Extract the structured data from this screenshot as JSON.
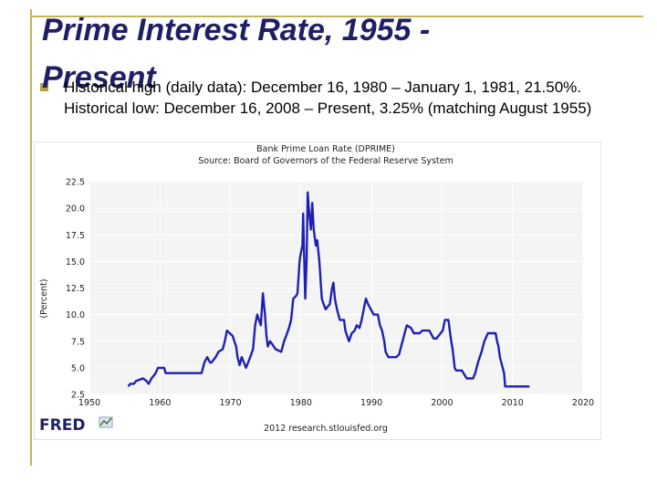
{
  "slide": {
    "title_line1": "Prime Interest Rate, 1955 -",
    "title_line2": "Present",
    "bullet": "Historical high (daily data): December 16, 1980 – January 1, 1981, 21.50%.  Historical low: December 16, 2008 – Present, 3.25% (matching August 1955)"
  },
  "colors": {
    "accent_rule": "#c8b35a",
    "title": "#1f1f66",
    "series_line": "#1f1fb4"
  },
  "chart_data": {
    "type": "line",
    "title": "Bank Prime Loan Rate (DPRIME)",
    "subtitle": "Source: Board of Governors of the Federal Reserve System",
    "ylabel": "(Percent)",
    "xlabel": "",
    "xlim": [
      1950,
      2020
    ],
    "ylim": [
      2.5,
      22.5
    ],
    "x_ticks": [
      "1950",
      "1960",
      "1970",
      "1980",
      "1990",
      "2000",
      "2010",
      "2020"
    ],
    "y_ticks": [
      "2.5",
      "5.0",
      "7.5",
      "10.0",
      "12.5",
      "15.0",
      "17.5",
      "20.0",
      "22.5"
    ],
    "grid": true,
    "logo": "FRED",
    "footer": "2012 research.stlouisfed.org",
    "series": [
      {
        "x": [
          1955.5,
          1955.8,
          1956.3,
          1956.6,
          1957.6,
          1958.1,
          1958.4,
          1958.8,
          1959.4,
          1959.7,
          1960.6,
          1960.8,
          1965.9,
          1966.3,
          1966.7,
          1967.1,
          1967.3,
          1967.9,
          1968.3,
          1968.9,
          1969.2,
          1969.5,
          1970.3,
          1970.8,
          1971.0,
          1971.3,
          1971.6,
          1971.9,
          1972.2,
          1972.8,
          1973.2,
          1973.5,
          1973.8,
          1974.3,
          1974.6,
          1974.9,
          1975.1,
          1975.3,
          1975.6,
          1975.9,
          1976.4,
          1977.2,
          1977.6,
          1977.9,
          1978.3,
          1978.6,
          1978.9,
          1979.3,
          1979.5,
          1979.8,
          1979.9,
          1980.2,
          1980.3,
          1980.4,
          1980.6,
          1980.8,
          1980.95,
          1981.1,
          1981.4,
          1981.6,
          1981.8,
          1982.1,
          1982.3,
          1982.6,
          1982.8,
          1982.95,
          1983.2,
          1983.5,
          1984.1,
          1984.4,
          1984.6,
          1984.8,
          1985.1,
          1985.5,
          1986.1,
          1986.3,
          1986.8,
          1987.2,
          1987.6,
          1987.9,
          1988.3,
          1988.6,
          1988.9,
          1989.2,
          1989.5,
          1989.9,
          1990.3,
          1990.9,
          1991.2,
          1991.5,
          1991.8,
          1992.0,
          1992.4,
          1993.5,
          1993.9,
          1994.2,
          1994.5,
          1994.8,
          1995.0,
          1995.6,
          1996.0,
          1996.8,
          1997.2,
          1997.6,
          1998.2,
          1998.8,
          1999.2,
          1999.5,
          1999.8,
          2000.1,
          2000.4,
          2000.9,
          2001.1,
          2001.3,
          2001.5,
          2001.8,
          2002.0,
          2002.8,
          2003.5,
          2004.4,
          2004.7,
          2005.1,
          2005.6,
          2006.0,
          2006.5,
          2007.6,
          2007.8,
          2008.0,
          2008.2,
          2008.6,
          2008.8,
          2008.95,
          2012.4
        ],
        "y": [
          3.25,
          3.5,
          3.5,
          3.75,
          4.0,
          3.75,
          3.5,
          4.0,
          4.5,
          5.0,
          5.0,
          4.5,
          4.5,
          5.5,
          6.0,
          5.5,
          5.5,
          6.0,
          6.5,
          6.75,
          7.5,
          8.5,
          8.0,
          7.0,
          6.0,
          5.25,
          6.0,
          5.5,
          5.0,
          6.0,
          6.75,
          9.0,
          10.0,
          9.0,
          12.0,
          10.0,
          8.0,
          7.0,
          7.5,
          7.25,
          6.75,
          6.5,
          7.5,
          8.0,
          8.75,
          9.5,
          11.5,
          11.75,
          12.0,
          15.0,
          15.5,
          16.5,
          19.5,
          17.0,
          11.5,
          15.0,
          21.5,
          20.0,
          18.0,
          20.5,
          18.0,
          16.5,
          17.0,
          15.0,
          13.0,
          11.5,
          11.0,
          10.5,
          11.0,
          12.5,
          13.0,
          11.5,
          10.5,
          9.5,
          9.5,
          8.5,
          7.5,
          8.25,
          8.5,
          9.0,
          8.75,
          9.5,
          10.5,
          11.5,
          11.0,
          10.5,
          10.0,
          10.0,
          9.0,
          8.5,
          7.5,
          6.5,
          6.0,
          6.0,
          6.25,
          7.0,
          7.75,
          8.5,
          9.0,
          8.75,
          8.25,
          8.25,
          8.5,
          8.5,
          8.5,
          7.75,
          7.75,
          8.0,
          8.25,
          8.5,
          9.5,
          9.5,
          8.5,
          7.5,
          6.75,
          5.0,
          4.75,
          4.75,
          4.0,
          4.0,
          4.5,
          5.5,
          6.5,
          7.5,
          8.25,
          8.25,
          7.5,
          7.0,
          6.0,
          5.0,
          4.5,
          3.25,
          3.25
        ]
      }
    ]
  }
}
